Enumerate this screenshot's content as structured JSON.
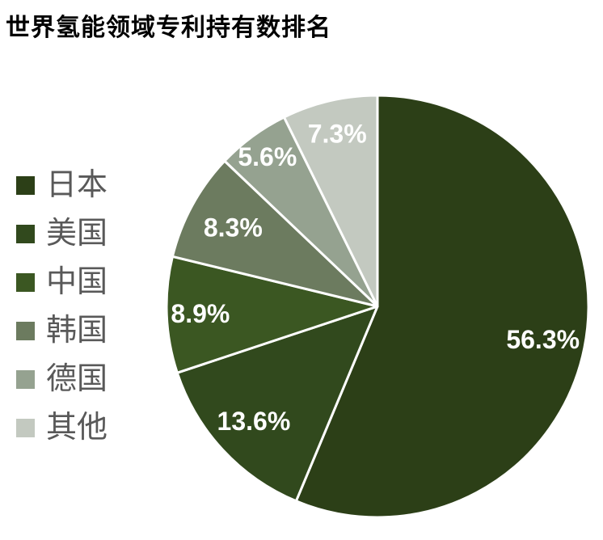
{
  "page": {
    "background_color": "#FFFFFF"
  },
  "chart_data": {
    "type": "pie",
    "title": "世界氢能领域专利持有数排名",
    "title_color": "#000000",
    "categories": [
      "日本",
      "美国",
      "中国",
      "韩国",
      "德国",
      "其他"
    ],
    "ids": [
      "japan",
      "usa",
      "china",
      "korea",
      "germany",
      "other"
    ],
    "values": [
      56.3,
      13.6,
      8.9,
      8.3,
      5.6,
      7.3
    ],
    "labels": [
      "56.3%",
      "13.6%",
      "8.9%",
      "8.3%",
      "5.6%",
      "7.3%"
    ],
    "colors": [
      "#2C3F17",
      "#31491D",
      "#3B5722",
      "#6C7B5F",
      "#95A290",
      "#C3C9C0"
    ],
    "unit": "%",
    "start_angle_deg": 0,
    "direction": "clockwise",
    "slice_border_color": "#FFFFFF",
    "data_label_color": "#FFFFFF",
    "legend_position": "left",
    "legend_text_color": "#595959",
    "grid": false
  }
}
